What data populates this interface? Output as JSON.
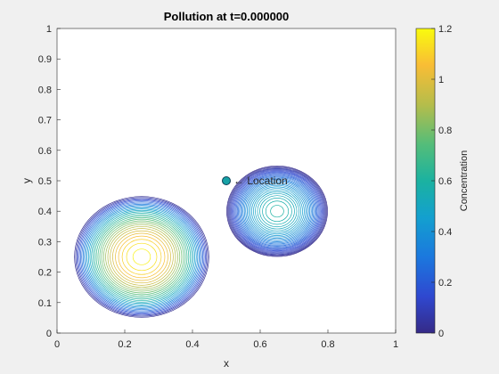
{
  "chart_data": {
    "type": "contour",
    "title": "Pollution at t=0.000000",
    "xlabel": "x",
    "ylabel": "y",
    "xlim": [
      0,
      1
    ],
    "ylim": [
      0,
      1
    ],
    "xticks": [
      "0",
      "0.2",
      "0.4",
      "0.6",
      "0.8",
      "1"
    ],
    "yticks": [
      "0",
      "0.1",
      "0.2",
      "0.3",
      "0.4",
      "0.5",
      "0.6",
      "0.7",
      "0.8",
      "0.9",
      "1"
    ],
    "grid": false,
    "colorbar": {
      "label": "Concentration",
      "range": [
        0,
        1.2
      ],
      "ticks": [
        "0",
        "0.2",
        "0.4",
        "0.6",
        "0.8",
        "1",
        "1.2"
      ],
      "colormap": "parula"
    },
    "sources": [
      {
        "center": [
          0.25,
          0.25
        ],
        "peak": 1.2,
        "radius": 0.2
      },
      {
        "center": [
          0.65,
          0.4
        ],
        "peak": 0.6,
        "radius": 0.15
      }
    ],
    "marker": {
      "x": 0.5,
      "y": 0.5,
      "label": "← Location",
      "face_color": "#17a2a6",
      "edge_color": "#0b3f55"
    }
  }
}
